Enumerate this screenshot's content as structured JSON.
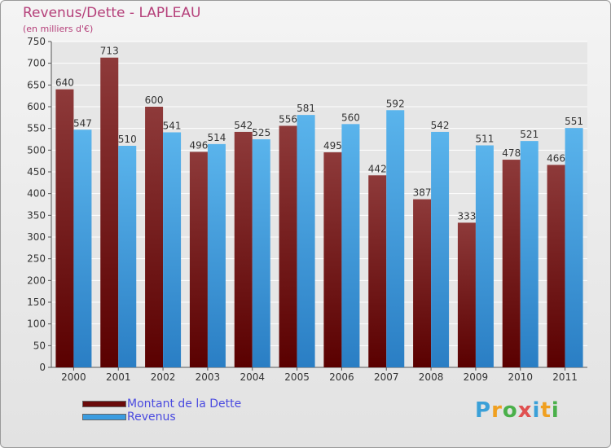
{
  "title": "Revenus/Dette - LAPLEAU",
  "subtitle": "(en milliers d'€)",
  "brand": {
    "letters": [
      {
        "ch": "P",
        "color": "#3aa0d8"
      },
      {
        "ch": "r",
        "color": "#f0a020"
      },
      {
        "ch": "o",
        "color": "#4ab04a"
      },
      {
        "ch": "x",
        "color": "#e05050"
      },
      {
        "ch": "i",
        "color": "#3aa0d8"
      },
      {
        "ch": "t",
        "color": "#f0a020"
      },
      {
        "ch": "i",
        "color": "#4ab04a"
      }
    ]
  },
  "colors": {
    "dette": "#7a1a1a",
    "revenus": "#3a9ce0",
    "title": "#b5407a",
    "legend_text": "#4a4ae0"
  },
  "chart_data": {
    "type": "bar",
    "title": "Revenus/Dette - LAPLEAU",
    "ylabel": "(en milliers d'€)",
    "categories": [
      "2000",
      "2001",
      "2002",
      "2003",
      "2004",
      "2005",
      "2006",
      "2007",
      "2008",
      "2009",
      "2010",
      "2011"
    ],
    "series": [
      {
        "name": "Montant de la Dette",
        "values": [
          640,
          713,
          600,
          496,
          542,
          556,
          495,
          442,
          387,
          333,
          478,
          466
        ]
      },
      {
        "name": "Revenus",
        "values": [
          547,
          510,
          541,
          514,
          525,
          581,
          560,
          592,
          542,
          511,
          521,
          551
        ]
      }
    ],
    "ylim": [
      0,
      750
    ],
    "yticks": [
      0,
      50,
      100,
      150,
      200,
      250,
      300,
      350,
      400,
      450,
      500,
      550,
      600,
      650,
      700,
      750
    ],
    "grid": true,
    "legend_position": "bottom-left"
  }
}
